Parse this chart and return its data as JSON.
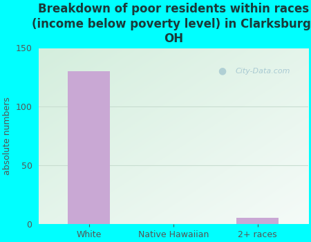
{
  "categories": [
    "White",
    "Native Hawaiian",
    "2+ races"
  ],
  "values": [
    130,
    0,
    5
  ],
  "bar_color": "#c9a8d4",
  "title": "Breakdown of poor residents within races\n(income below poverty level) in Clarksburg,\nOH",
  "ylabel": "absolute numbers",
  "ylim": [
    0,
    150
  ],
  "yticks": [
    0,
    50,
    100,
    150
  ],
  "bg_outer": "#00ffff",
  "bg_plot_top_left": "#d4eedd",
  "bg_plot_bottom_right": "#f5fbf8",
  "title_color": "#1a3a3a",
  "axis_color": "#555555",
  "watermark": "City-Data.com",
  "grid_color": "#c8ddd0",
  "title_fontsize": 12,
  "ylabel_fontsize": 9,
  "tick_fontsize": 9
}
